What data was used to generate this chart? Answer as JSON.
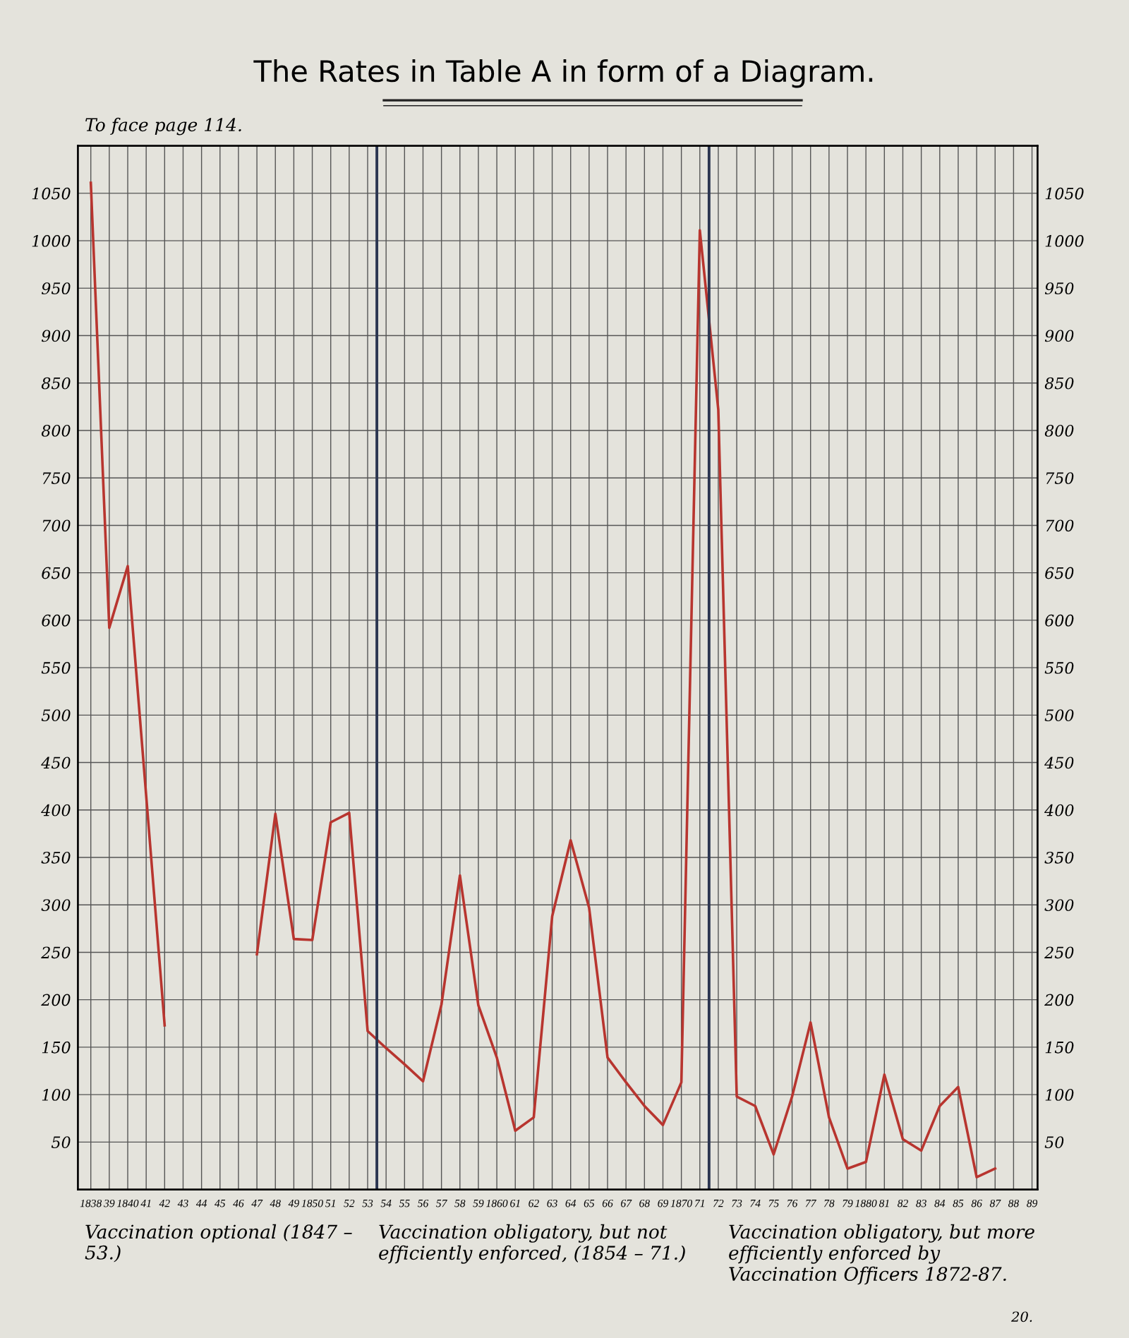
{
  "chart_data": {
    "type": "line",
    "title": "The Rates in Table A in form of a Diagram.",
    "x": [
      1838,
      1839,
      1840,
      1841,
      1842,
      1843,
      1844,
      1845,
      1846,
      1847,
      1848,
      1849,
      1850,
      1851,
      1852,
      1853,
      1854,
      1855,
      1856,
      1857,
      1858,
      1859,
      1860,
      1861,
      1862,
      1863,
      1864,
      1865,
      1866,
      1867,
      1868,
      1869,
      1870,
      1871,
      1872,
      1873,
      1874,
      1875,
      1876,
      1877,
      1878,
      1879,
      1880,
      1881,
      1882,
      1883,
      1884,
      1885,
      1886,
      1887
    ],
    "series": [
      {
        "color": "#b8352f",
        "values": [
          1061,
          592,
          657,
          415,
          173,
          null,
          null,
          null,
          null,
          248,
          396,
          264,
          263,
          387,
          397,
          167,
          149,
          132,
          114,
          195,
          331,
          194,
          139,
          62,
          76,
          288,
          368,
          297,
          139,
          113,
          88,
          68,
          113,
          1011,
          822,
          98,
          88,
          37,
          98,
          176,
          76,
          22,
          29,
          121,
          53,
          41,
          88,
          108,
          13,
          22
        ]
      }
    ],
    "xlim": [
      1837.3,
      1889.3
    ],
    "xticks": [
      {
        "value": 1838,
        "label": "1838"
      },
      {
        "value": 1839,
        "label": "39"
      },
      {
        "value": 1840,
        "label": "1840"
      },
      {
        "value": 1841,
        "label": "41"
      },
      {
        "value": 1842,
        "label": "42"
      },
      {
        "value": 1843,
        "label": "43"
      },
      {
        "value": 1844,
        "label": "44"
      },
      {
        "value": 1845,
        "label": "45"
      },
      {
        "value": 1846,
        "label": "46"
      },
      {
        "value": 1847,
        "label": "47"
      },
      {
        "value": 1848,
        "label": "48"
      },
      {
        "value": 1849,
        "label": "49"
      },
      {
        "value": 1850,
        "label": "1850"
      },
      {
        "value": 1851,
        "label": "51"
      },
      {
        "value": 1852,
        "label": "52"
      },
      {
        "value": 1853,
        "label": "53"
      },
      {
        "value": 1854,
        "label": "54"
      },
      {
        "value": 1855,
        "label": "55"
      },
      {
        "value": 1856,
        "label": "56"
      },
      {
        "value": 1857,
        "label": "57"
      },
      {
        "value": 1858,
        "label": "58"
      },
      {
        "value": 1859,
        "label": "59"
      },
      {
        "value": 1860,
        "label": "1860"
      },
      {
        "value": 1861,
        "label": "61"
      },
      {
        "value": 1862,
        "label": "62"
      },
      {
        "value": 1863,
        "label": "63"
      },
      {
        "value": 1864,
        "label": "64"
      },
      {
        "value": 1865,
        "label": "65"
      },
      {
        "value": 1866,
        "label": "66"
      },
      {
        "value": 1867,
        "label": "67"
      },
      {
        "value": 1868,
        "label": "68"
      },
      {
        "value": 1869,
        "label": "69"
      },
      {
        "value": 1870,
        "label": "1870"
      },
      {
        "value": 1871,
        "label": "71"
      },
      {
        "value": 1872,
        "label": "72"
      },
      {
        "value": 1873,
        "label": "73"
      },
      {
        "value": 1874,
        "label": "74"
      },
      {
        "value": 1875,
        "label": "75"
      },
      {
        "value": 1876,
        "label": "76"
      },
      {
        "value": 1877,
        "label": "77"
      },
      {
        "value": 1878,
        "label": "78"
      },
      {
        "value": 1879,
        "label": "79"
      },
      {
        "value": 1880,
        "label": "1880"
      },
      {
        "value": 1881,
        "label": "81"
      },
      {
        "value": 1882,
        "label": "82"
      },
      {
        "value": 1883,
        "label": "83"
      },
      {
        "value": 1884,
        "label": "84"
      },
      {
        "value": 1885,
        "label": "85"
      },
      {
        "value": 1886,
        "label": "86"
      },
      {
        "value": 1887,
        "label": "87"
      },
      {
        "value": 1888,
        "label": "88"
      },
      {
        "value": 1889,
        "label": "89"
      }
    ],
    "ylim": [
      0,
      1100
    ],
    "yticks": [
      50,
      100,
      150,
      200,
      250,
      300,
      350,
      400,
      450,
      500,
      550,
      600,
      650,
      700,
      750,
      800,
      850,
      900,
      950,
      1000,
      1050
    ],
    "y2lim": [
      0,
      1100
    ],
    "y2ticks": [
      50,
      100,
      150,
      200,
      250,
      300,
      350,
      400,
      450,
      500,
      550,
      600,
      650,
      700,
      750,
      800,
      850,
      900,
      950,
      1000,
      1050
    ],
    "grid": true,
    "ref_lines": [
      {
        "axis": "x",
        "value": 1853.5,
        "color": "#2b3550"
      },
      {
        "axis": "x",
        "value": 1871.5,
        "color": "#2b3550"
      }
    ],
    "annotations": [
      "To face page 114.",
      "Vaccination optional (1847 – 53.)",
      "Vaccination obligatory, but not efficiently enforced, (1854 – 71.)",
      "Vaccination obligatory, but more efficiently enforced by Vaccination Officers 1872-87.",
      "20."
    ]
  }
}
